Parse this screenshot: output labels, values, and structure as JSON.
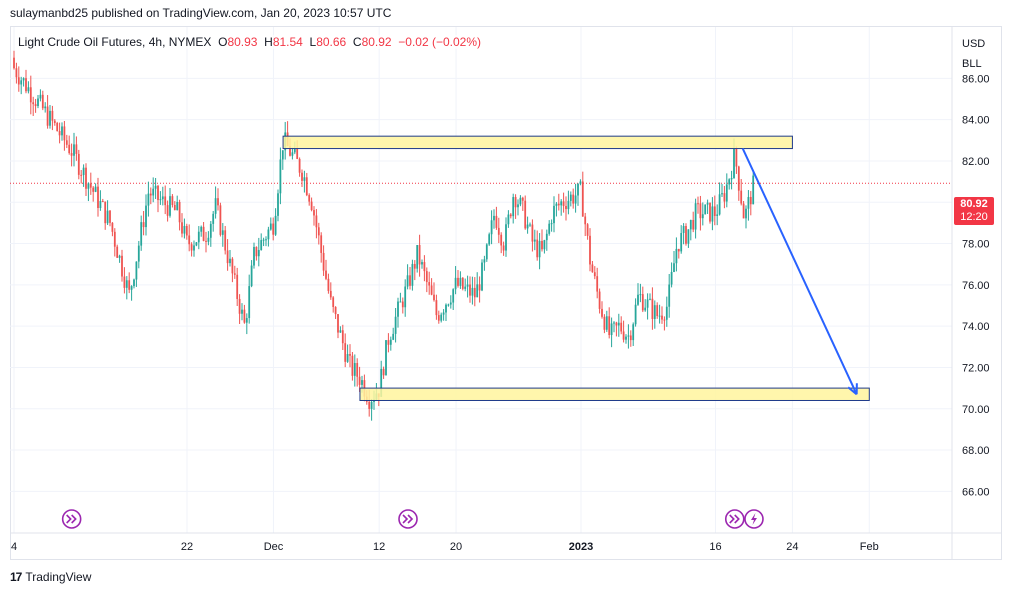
{
  "header": {
    "publisher_line": "sulaymanbd25 published on TradingView.com, Jan 20, 2023 10:57 UTC"
  },
  "legend": {
    "symbol": "Light Crude Oil Futures, 4h, NYMEX",
    "o_label": "O",
    "o_value": "80.93",
    "h_label": "H",
    "h_value": "81.54",
    "l_label": "L",
    "l_value": "80.66",
    "c_label": "C",
    "c_value": "80.92",
    "change": "−0.02 (−0.02%)"
  },
  "price_scale": {
    "currency": "USD",
    "unit": "BLL",
    "last_price": "80.92",
    "countdown": "12:20"
  },
  "footer": {
    "brand": "TradingView",
    "logo_text": "17"
  },
  "colors": {
    "up": "#26a69a",
    "down": "#ef5350",
    "zone_fill": "#fff59d",
    "zone_border": "#1e3a8a",
    "arrow": "#2962ff",
    "last_price_line": "#f23645",
    "event_marker": "#9c27b0"
  },
  "chart_data": {
    "type": "candlestick",
    "symbol": "Light Crude Oil Futures",
    "interval": "4h",
    "ylim": [
      65,
      88
    ],
    "ytick_labels": [
      "86.00",
      "84.00",
      "82.00",
      "80.00",
      "78.00",
      "76.00",
      "74.00",
      "72.00",
      "70.00",
      "68.00",
      "66.00"
    ],
    "xtick_labels": [
      "4",
      "22",
      "Dec",
      "12",
      "20",
      "2023",
      "16",
      "24",
      "Feb"
    ],
    "x_categories": [
      "Nov 4",
      "Nov 22",
      "Dec 1",
      "Dec 12",
      "Dec 20",
      "Jan 2 2023",
      "Jan 16",
      "Jan 24",
      "Feb 1"
    ],
    "last_price": 80.92,
    "grid": true,
    "path_series": [
      {
        "x": "Nov 4",
        "y": 86.5
      },
      {
        "x": "Nov 7",
        "y": 84.5
      },
      {
        "x": "Nov 10",
        "y": 82.5
      },
      {
        "x": "Nov 14",
        "y": 79.0
      },
      {
        "x": "Nov 16",
        "y": 75.5
      },
      {
        "x": "Nov 18",
        "y": 80.5
      },
      {
        "x": "Nov 21",
        "y": 79.5
      },
      {
        "x": "Nov 22",
        "y": 78.0
      },
      {
        "x": "Nov 24",
        "y": 78.5
      },
      {
        "x": "Nov 25",
        "y": 79.8
      },
      {
        "x": "Nov 28",
        "y": 74.0
      },
      {
        "x": "Nov 29",
        "y": 77.5
      },
      {
        "x": "Dec 1",
        "y": 79.0
      },
      {
        "x": "Dec 2",
        "y": 83.0
      },
      {
        "x": "Dec 4",
        "y": 81.5
      },
      {
        "x": "Dec 5",
        "y": 80.0
      },
      {
        "x": "Dec 6",
        "y": 77.5
      },
      {
        "x": "Dec 7",
        "y": 75.0
      },
      {
        "x": "Dec 8",
        "y": 73.5
      },
      {
        "x": "Dec 9",
        "y": 72.0
      },
      {
        "x": "Dec 10",
        "y": 71.5
      },
      {
        "x": "Dec 11",
        "y": 70.5
      },
      {
        "x": "Dec 12",
        "y": 71.0
      },
      {
        "x": "Dec 13",
        "y": 73.5
      },
      {
        "x": "Dec 15",
        "y": 76.0
      },
      {
        "x": "Dec 16",
        "y": 77.5
      },
      {
        "x": "Dec 17",
        "y": 76.0
      },
      {
        "x": "Dec 18",
        "y": 74.5
      },
      {
        "x": "Dec 20",
        "y": 76.0
      },
      {
        "x": "Dec 22",
        "y": 75.5
      },
      {
        "x": "Dec 23",
        "y": 77.0
      },
      {
        "x": "Dec 24",
        "y": 79.5
      },
      {
        "x": "Dec 25",
        "y": 78.0
      },
      {
        "x": "Dec 26",
        "y": 80.5
      },
      {
        "x": "Dec 27",
        "y": 79.5
      },
      {
        "x": "Dec 28",
        "y": 78.0
      },
      {
        "x": "Dec 29",
        "y": 77.5
      },
      {
        "x": "Dec 30",
        "y": 79.5
      },
      {
        "x": "Dec 31",
        "y": 80.0
      },
      {
        "x": "Jan 2 2023",
        "y": 80.5
      },
      {
        "x": "Jan 3",
        "y": 77.0
      },
      {
        "x": "Jan 4",
        "y": 75.0
      },
      {
        "x": "Jan 5",
        "y": 73.5
      },
      {
        "x": "Jan 6",
        "y": 74.0
      },
      {
        "x": "Jan 7",
        "y": 73.5
      },
      {
        "x": "Jan 8",
        "y": 75.5
      },
      {
        "x": "Jan 10",
        "y": 74.5
      },
      {
        "x": "Jan 11",
        "y": 75.0
      },
      {
        "x": "Jan 12",
        "y": 78.0
      },
      {
        "x": "Jan 13",
        "y": 78.5
      },
      {
        "x": "Jan 14",
        "y": 79.5
      },
      {
        "x": "Jan 16",
        "y": 79.5
      },
      {
        "x": "Jan 17",
        "y": 80.5
      },
      {
        "x": "Jan 18",
        "y": 82.3
      },
      {
        "x": "Jan 19",
        "y": 79.2
      },
      {
        "x": "Jan 20",
        "y": 80.9
      }
    ],
    "zones": [
      {
        "label": "resistance",
        "y_low": 82.6,
        "y_high": 83.2,
        "x_start": "Dec 2",
        "x_end": "Jan 24"
      },
      {
        "label": "support",
        "y_low": 70.4,
        "y_high": 71.0,
        "x_start": "Dec 10",
        "x_end": "Feb 1"
      }
    ],
    "projection_arrow": {
      "from": {
        "x": "Jan 18",
        "y": 82.6
      },
      "to": {
        "x": "Jan 31",
        "y": 70.7
      }
    },
    "event_markers": [
      {
        "x": "Nov 10",
        "icon": "fast-forward-icon"
      },
      {
        "x": "Dec 15",
        "icon": "fast-forward-icon"
      },
      {
        "x": "Jan 18",
        "icon": "fast-forward-icon"
      },
      {
        "x": "Jan 20",
        "icon": "lightning-icon"
      }
    ]
  }
}
